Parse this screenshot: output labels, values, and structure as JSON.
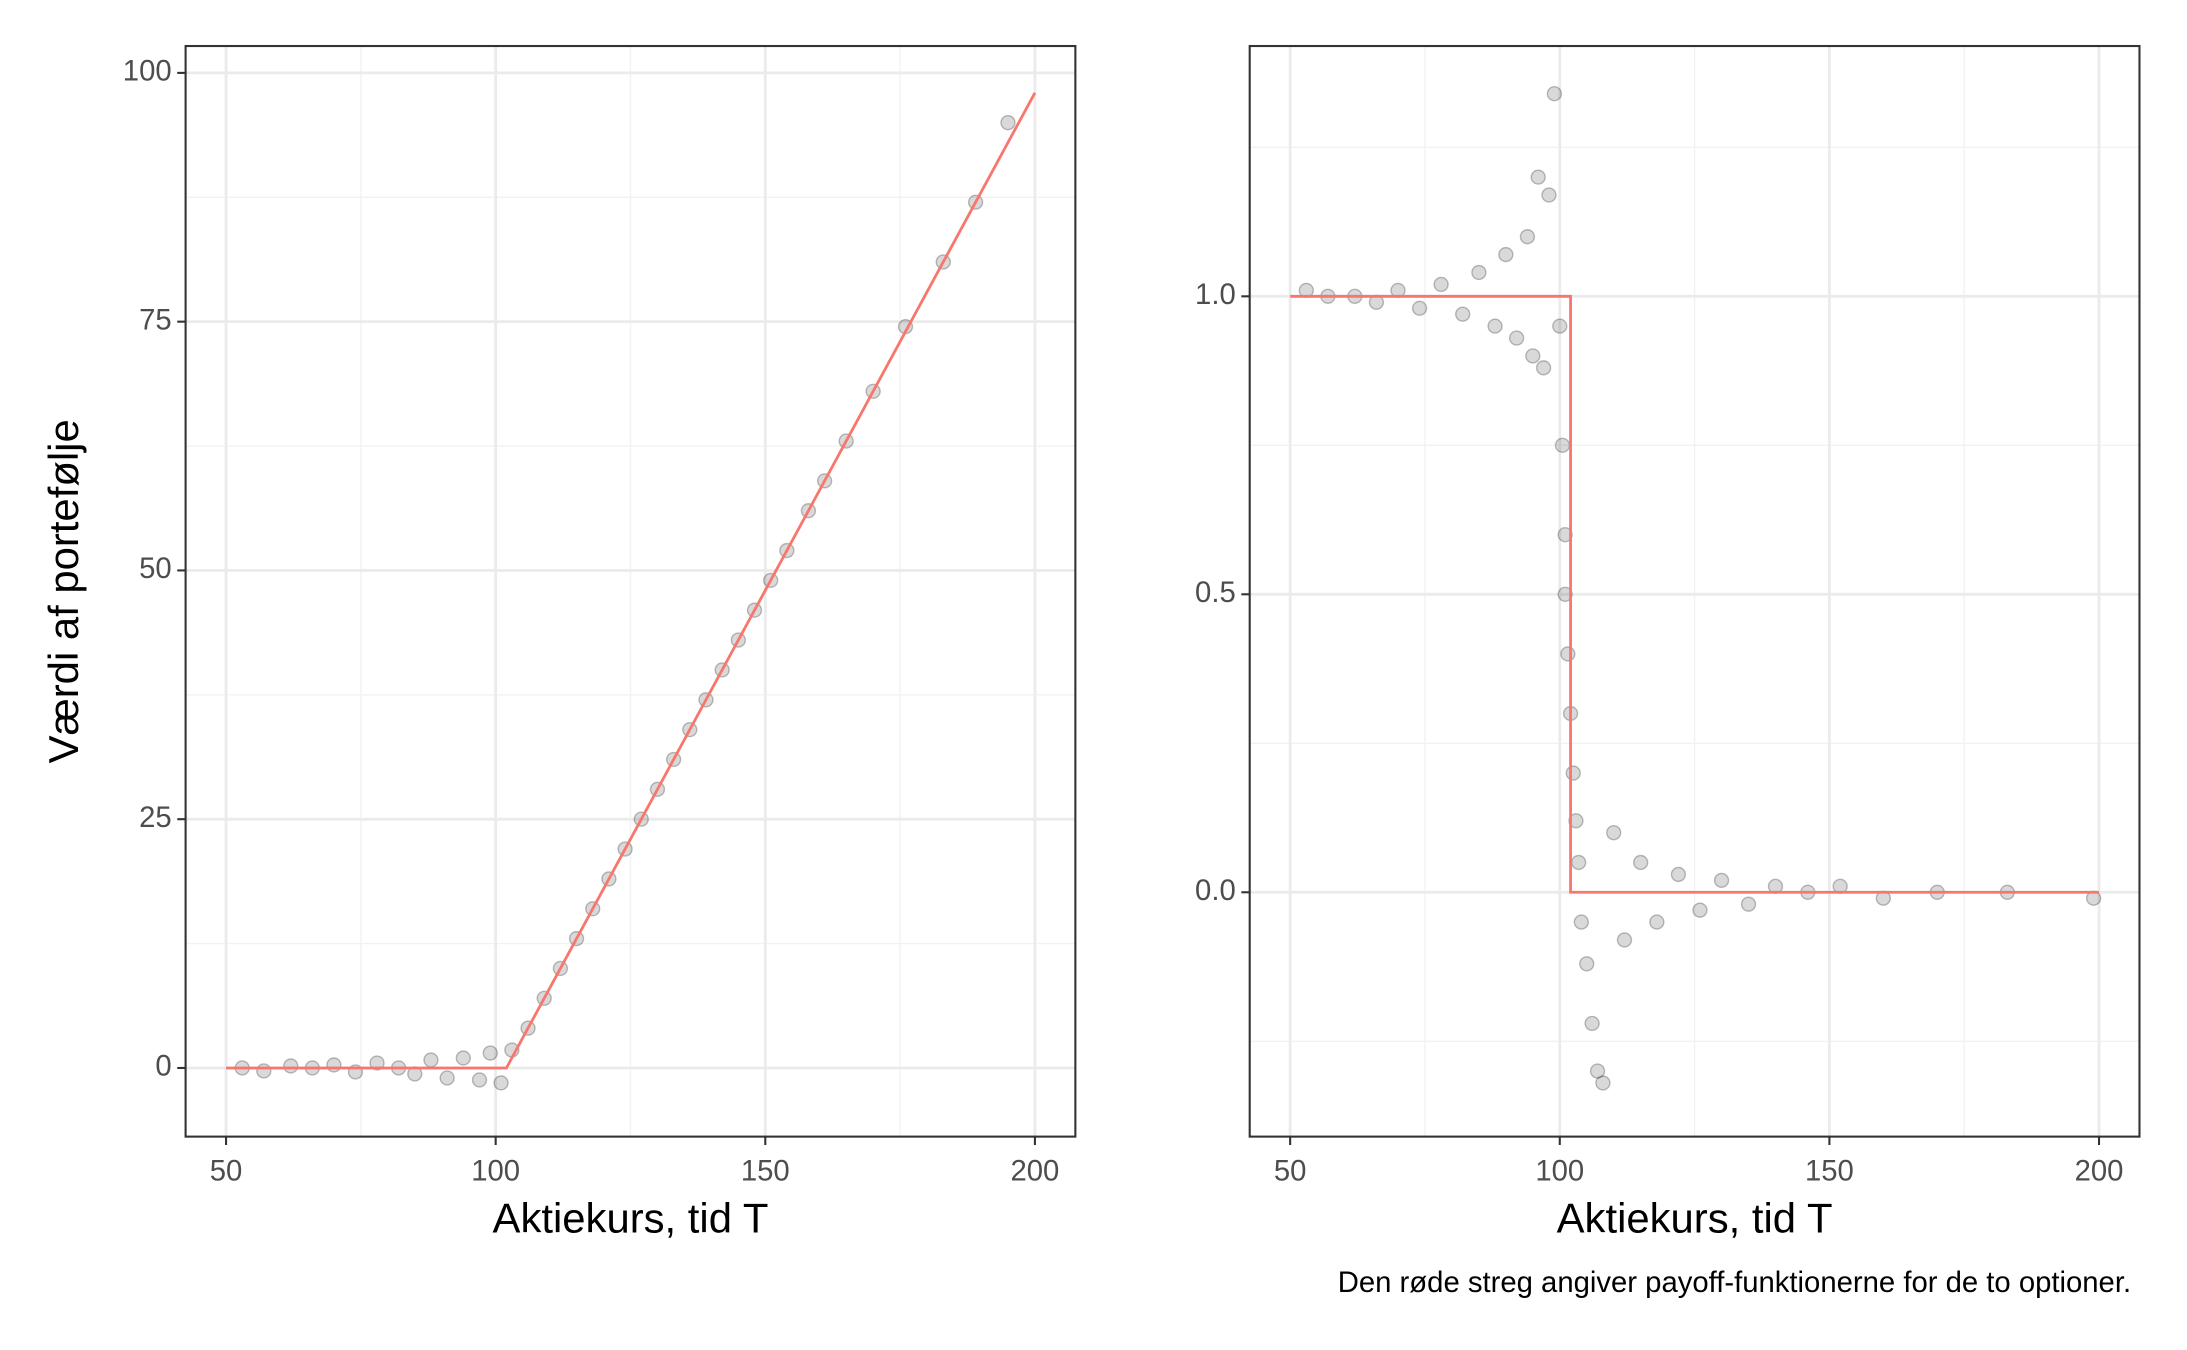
{
  "chart_data": [
    {
      "type": "scatter",
      "x_label": "Aktiekurs, tid T",
      "y_label": "Værdi af portefølje",
      "xlim": [
        42.5,
        207.5
      ],
      "ylim": [
        -6.9,
        102.7
      ],
      "xticks": [
        50,
        100,
        150,
        200
      ],
      "yticks": [
        0,
        25,
        50,
        75,
        100
      ],
      "xminor": [
        75,
        125,
        175
      ],
      "yminor": [
        12.5,
        37.5,
        62.5,
        87.5
      ],
      "grid": true,
      "points": {
        "color": "#000000",
        "x": [
          53,
          57,
          62,
          66,
          70,
          74,
          78,
          82,
          85,
          88,
          91,
          94,
          97,
          99,
          101,
          103,
          106,
          109,
          112,
          115,
          118,
          121,
          124,
          127,
          130,
          133,
          136,
          139,
          142,
          145,
          148,
          151,
          154,
          158,
          161,
          165,
          170,
          176,
          183,
          189,
          195
        ],
        "y": [
          0,
          -0.3,
          0.2,
          0,
          0.3,
          -0.4,
          0.5,
          0,
          -0.6,
          0.8,
          -1,
          1,
          -1.2,
          1.5,
          -1.5,
          1.8,
          4,
          7,
          10,
          13,
          16,
          19,
          22,
          25,
          28,
          31,
          34,
          37,
          40,
          43,
          46,
          49,
          52,
          56,
          59,
          63,
          68,
          74.5,
          81,
          87,
          95
        ]
      },
      "line": {
        "color": "#f8766d",
        "x": [
          50,
          102,
          200
        ],
        "y": [
          0,
          0,
          98
        ]
      }
    },
    {
      "type": "scatter",
      "x_label": "Aktiekurs, tid T",
      "xlim": [
        42.5,
        207.5
      ],
      "ylim": [
        -0.41,
        1.42
      ],
      "xticks": [
        50,
        100,
        150,
        200
      ],
      "yticks": [
        {
          "value": 0,
          "label": "0.0"
        },
        {
          "value": 0.5,
          "label": "0.5"
        },
        {
          "value": 1,
          "label": "1.0"
        }
      ],
      "xminor": [
        75,
        125,
        175
      ],
      "yminor": [
        -0.25,
        0.25,
        0.75,
        1.25
      ],
      "grid": true,
      "caption": "Den røde streg angiver payoff-funktionerne for de to optioner.",
      "points": {
        "color": "#000000",
        "x": [
          53,
          57,
          62,
          66,
          70,
          74,
          78,
          82,
          85,
          88,
          90,
          92,
          94,
          95,
          96,
          97,
          98,
          99,
          100,
          100.5,
          101,
          101,
          101.5,
          102,
          102.5,
          103,
          103.5,
          104,
          105,
          106,
          107,
          108,
          110,
          112,
          115,
          118,
          122,
          126,
          130,
          135,
          140,
          146,
          152,
          160,
          170,
          183,
          199
        ],
        "y": [
          1.01,
          1.0,
          1.0,
          0.99,
          1.01,
          0.98,
          1.02,
          0.97,
          1.04,
          0.95,
          1.07,
          0.93,
          1.1,
          0.9,
          1.2,
          0.88,
          1.17,
          1.34,
          0.95,
          0.75,
          0.6,
          0.5,
          0.4,
          0.3,
          0.2,
          0.12,
          0.05,
          -0.05,
          -0.12,
          -0.22,
          -0.3,
          -0.32,
          0.1,
          -0.08,
          0.05,
          -0.05,
          0.03,
          -0.03,
          0.02,
          -0.02,
          0.01,
          0.0,
          0.01,
          -0.01,
          0.0,
          0.0,
          -0.01
        ]
      },
      "line": {
        "color": "#f8766d",
        "x": [
          50,
          102,
          102,
          200
        ],
        "y": [
          1,
          1,
          0,
          0
        ]
      }
    }
  ]
}
